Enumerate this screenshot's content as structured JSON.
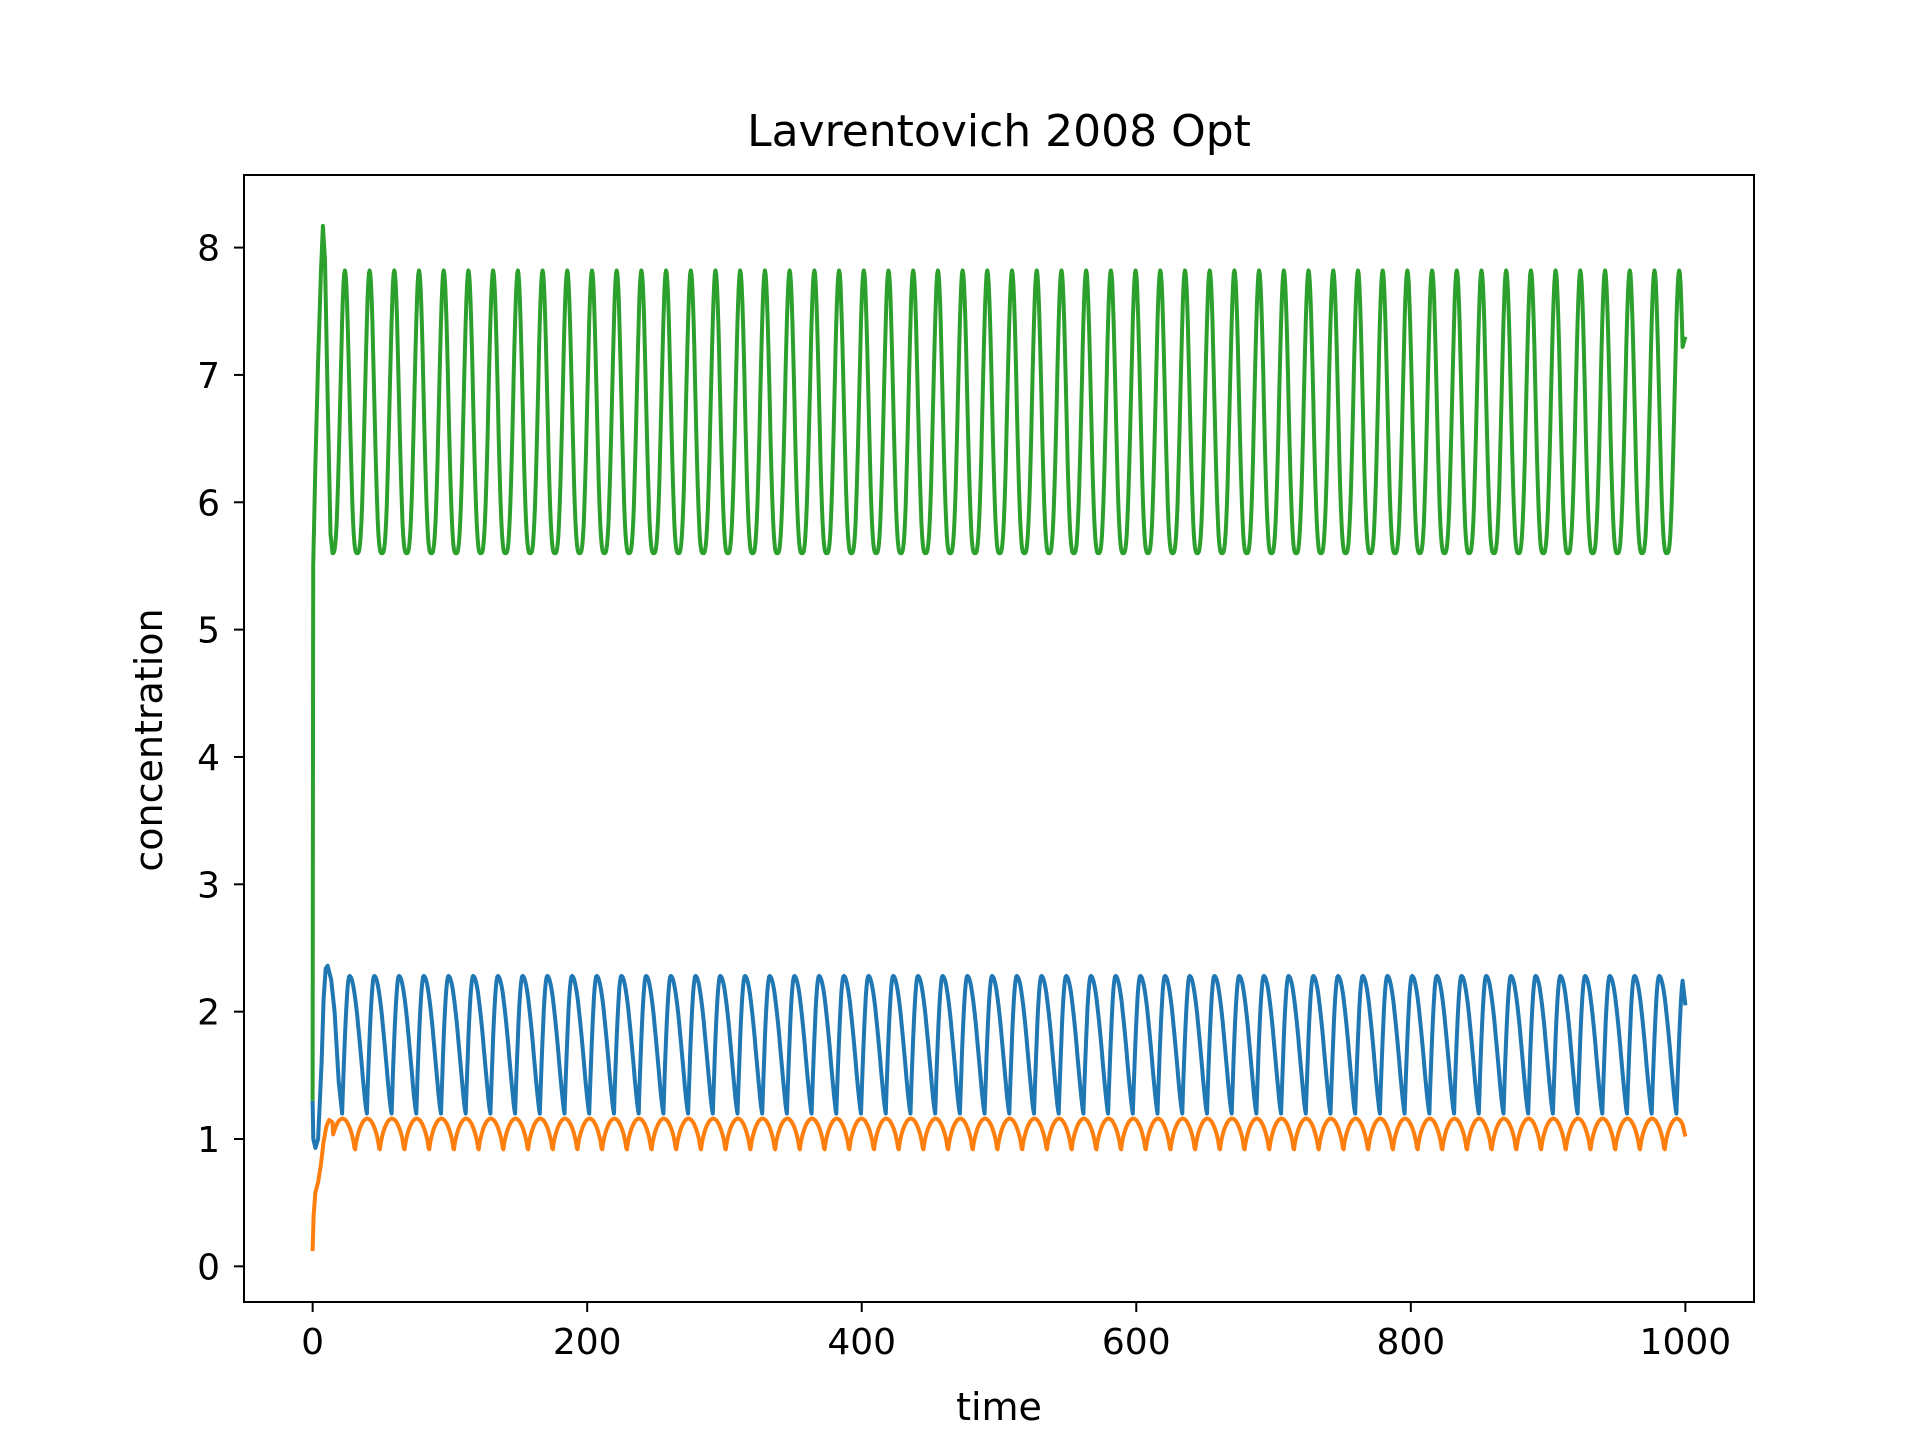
{
  "chart_data": {
    "type": "line",
    "title": "Lavrentovich 2008 Opt",
    "xlabel": "time",
    "ylabel": "concentration",
    "xlim": [
      -50,
      1050
    ],
    "ylim": [
      -0.28,
      8.57
    ],
    "x_ticks": [
      0,
      200,
      400,
      600,
      800,
      1000
    ],
    "y_ticks": [
      0,
      1,
      2,
      3,
      4,
      5,
      6,
      7,
      8
    ],
    "grid": false,
    "legend": "none",
    "series": [
      {
        "color": "#1f77b4",
        "start_point": [
          0,
          1.3
        ],
        "transient_points": [
          [
            0.5,
            1.0
          ],
          [
            2,
            0.93
          ],
          [
            4,
            1.0
          ],
          [
            6.5,
            1.6
          ],
          [
            8,
            2.1
          ],
          [
            9.5,
            2.34
          ],
          [
            11,
            2.36
          ],
          [
            13.5,
            2.25
          ],
          [
            16,
            2.0
          ],
          [
            19,
            1.45
          ],
          [
            21.5,
            1.2
          ]
        ],
        "cycle_peak": 2.28,
        "cycle_trough": 1.2,
        "period": 18,
        "first_peak_after": 28,
        "end_point": [
          1000,
          2.05
        ]
      },
      {
        "color": "#ff7f0e",
        "start_point": [
          0,
          0.12
        ],
        "transient_points": [
          [
            0.7,
            0.4
          ],
          [
            2,
            0.58
          ],
          [
            4,
            0.66
          ],
          [
            6,
            0.8
          ],
          [
            8,
            0.98
          ],
          [
            10,
            1.1
          ],
          [
            12,
            1.15
          ],
          [
            14.5,
            1.13
          ]
        ],
        "cycle_peak": 1.16,
        "cycle_trough": 0.88,
        "period": 18,
        "end_point": [
          1000,
          1.02
        ]
      },
      {
        "color": "#2ca02c",
        "start_point": [
          0,
          1.3
        ],
        "transient_points": [
          [
            0.4,
            5.5
          ],
          [
            2,
            6.3
          ],
          [
            4,
            7.1
          ],
          [
            6,
            7.8
          ],
          [
            7.5,
            8.17
          ],
          [
            9,
            7.9
          ],
          [
            11,
            6.8
          ],
          [
            13,
            5.75
          ],
          [
            14.5,
            5.6
          ]
        ],
        "cycle_peak": 7.82,
        "cycle_trough": 5.6,
        "period": 18,
        "first_peak_after": 26,
        "end_point": [
          1000,
          7.3
        ]
      }
    ]
  }
}
